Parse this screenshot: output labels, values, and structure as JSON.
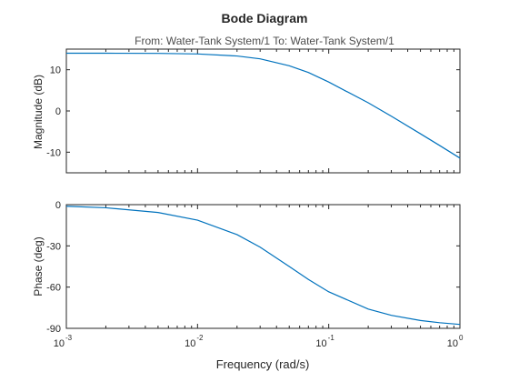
{
  "chart_data": [
    {
      "type": "line",
      "title": "Bode Diagram",
      "subtitle": "From: Water-Tank System/1  To: Water-Tank System/1",
      "xlabel": "Frequency (rad/s)",
      "ylabel": "Magnitude (dB)",
      "xscale": "log",
      "xlim": [
        0.001,
        1
      ],
      "ylim": [
        -15,
        15
      ],
      "yticks": [
        10,
        0,
        -10
      ],
      "grid": false,
      "series": [
        {
          "color": "#0072bd",
          "x": [
            0.001,
            0.002,
            0.005,
            0.01,
            0.02,
            0.03,
            0.05,
            0.07,
            0.1,
            0.2,
            0.3,
            0.5,
            0.7,
            1.0
          ],
          "y": [
            14.0,
            14.0,
            13.96,
            13.83,
            13.33,
            12.64,
            10.97,
            9.33,
            7.01,
            1.98,
            -1.27,
            -5.53,
            -8.37,
            -11.43
          ]
        }
      ]
    },
    {
      "type": "line",
      "xlabel": "Frequency (rad/s)",
      "ylabel": "Phase (deg)",
      "xscale": "log",
      "xlim": [
        0.001,
        1
      ],
      "ylim": [
        -90,
        0
      ],
      "xticks": [
        "10",
        "10",
        "10",
        "10"
      ],
      "xtick_exponents": [
        "-3",
        "-2",
        "-1",
        "0"
      ],
      "yticks": [
        0,
        -30,
        -60,
        -90
      ],
      "grid": false,
      "series": [
        {
          "color": "#0072bd",
          "x": [
            0.001,
            0.002,
            0.005,
            0.01,
            0.02,
            0.03,
            0.05,
            0.07,
            0.1,
            0.2,
            0.3,
            0.5,
            0.7,
            1.0
          ],
          "y": [
            -1.15,
            -2.29,
            -5.71,
            -11.31,
            -21.8,
            -30.96,
            -45.0,
            -54.46,
            -63.43,
            -75.96,
            -80.54,
            -84.29,
            -85.91,
            -87.14
          ]
        }
      ]
    }
  ]
}
